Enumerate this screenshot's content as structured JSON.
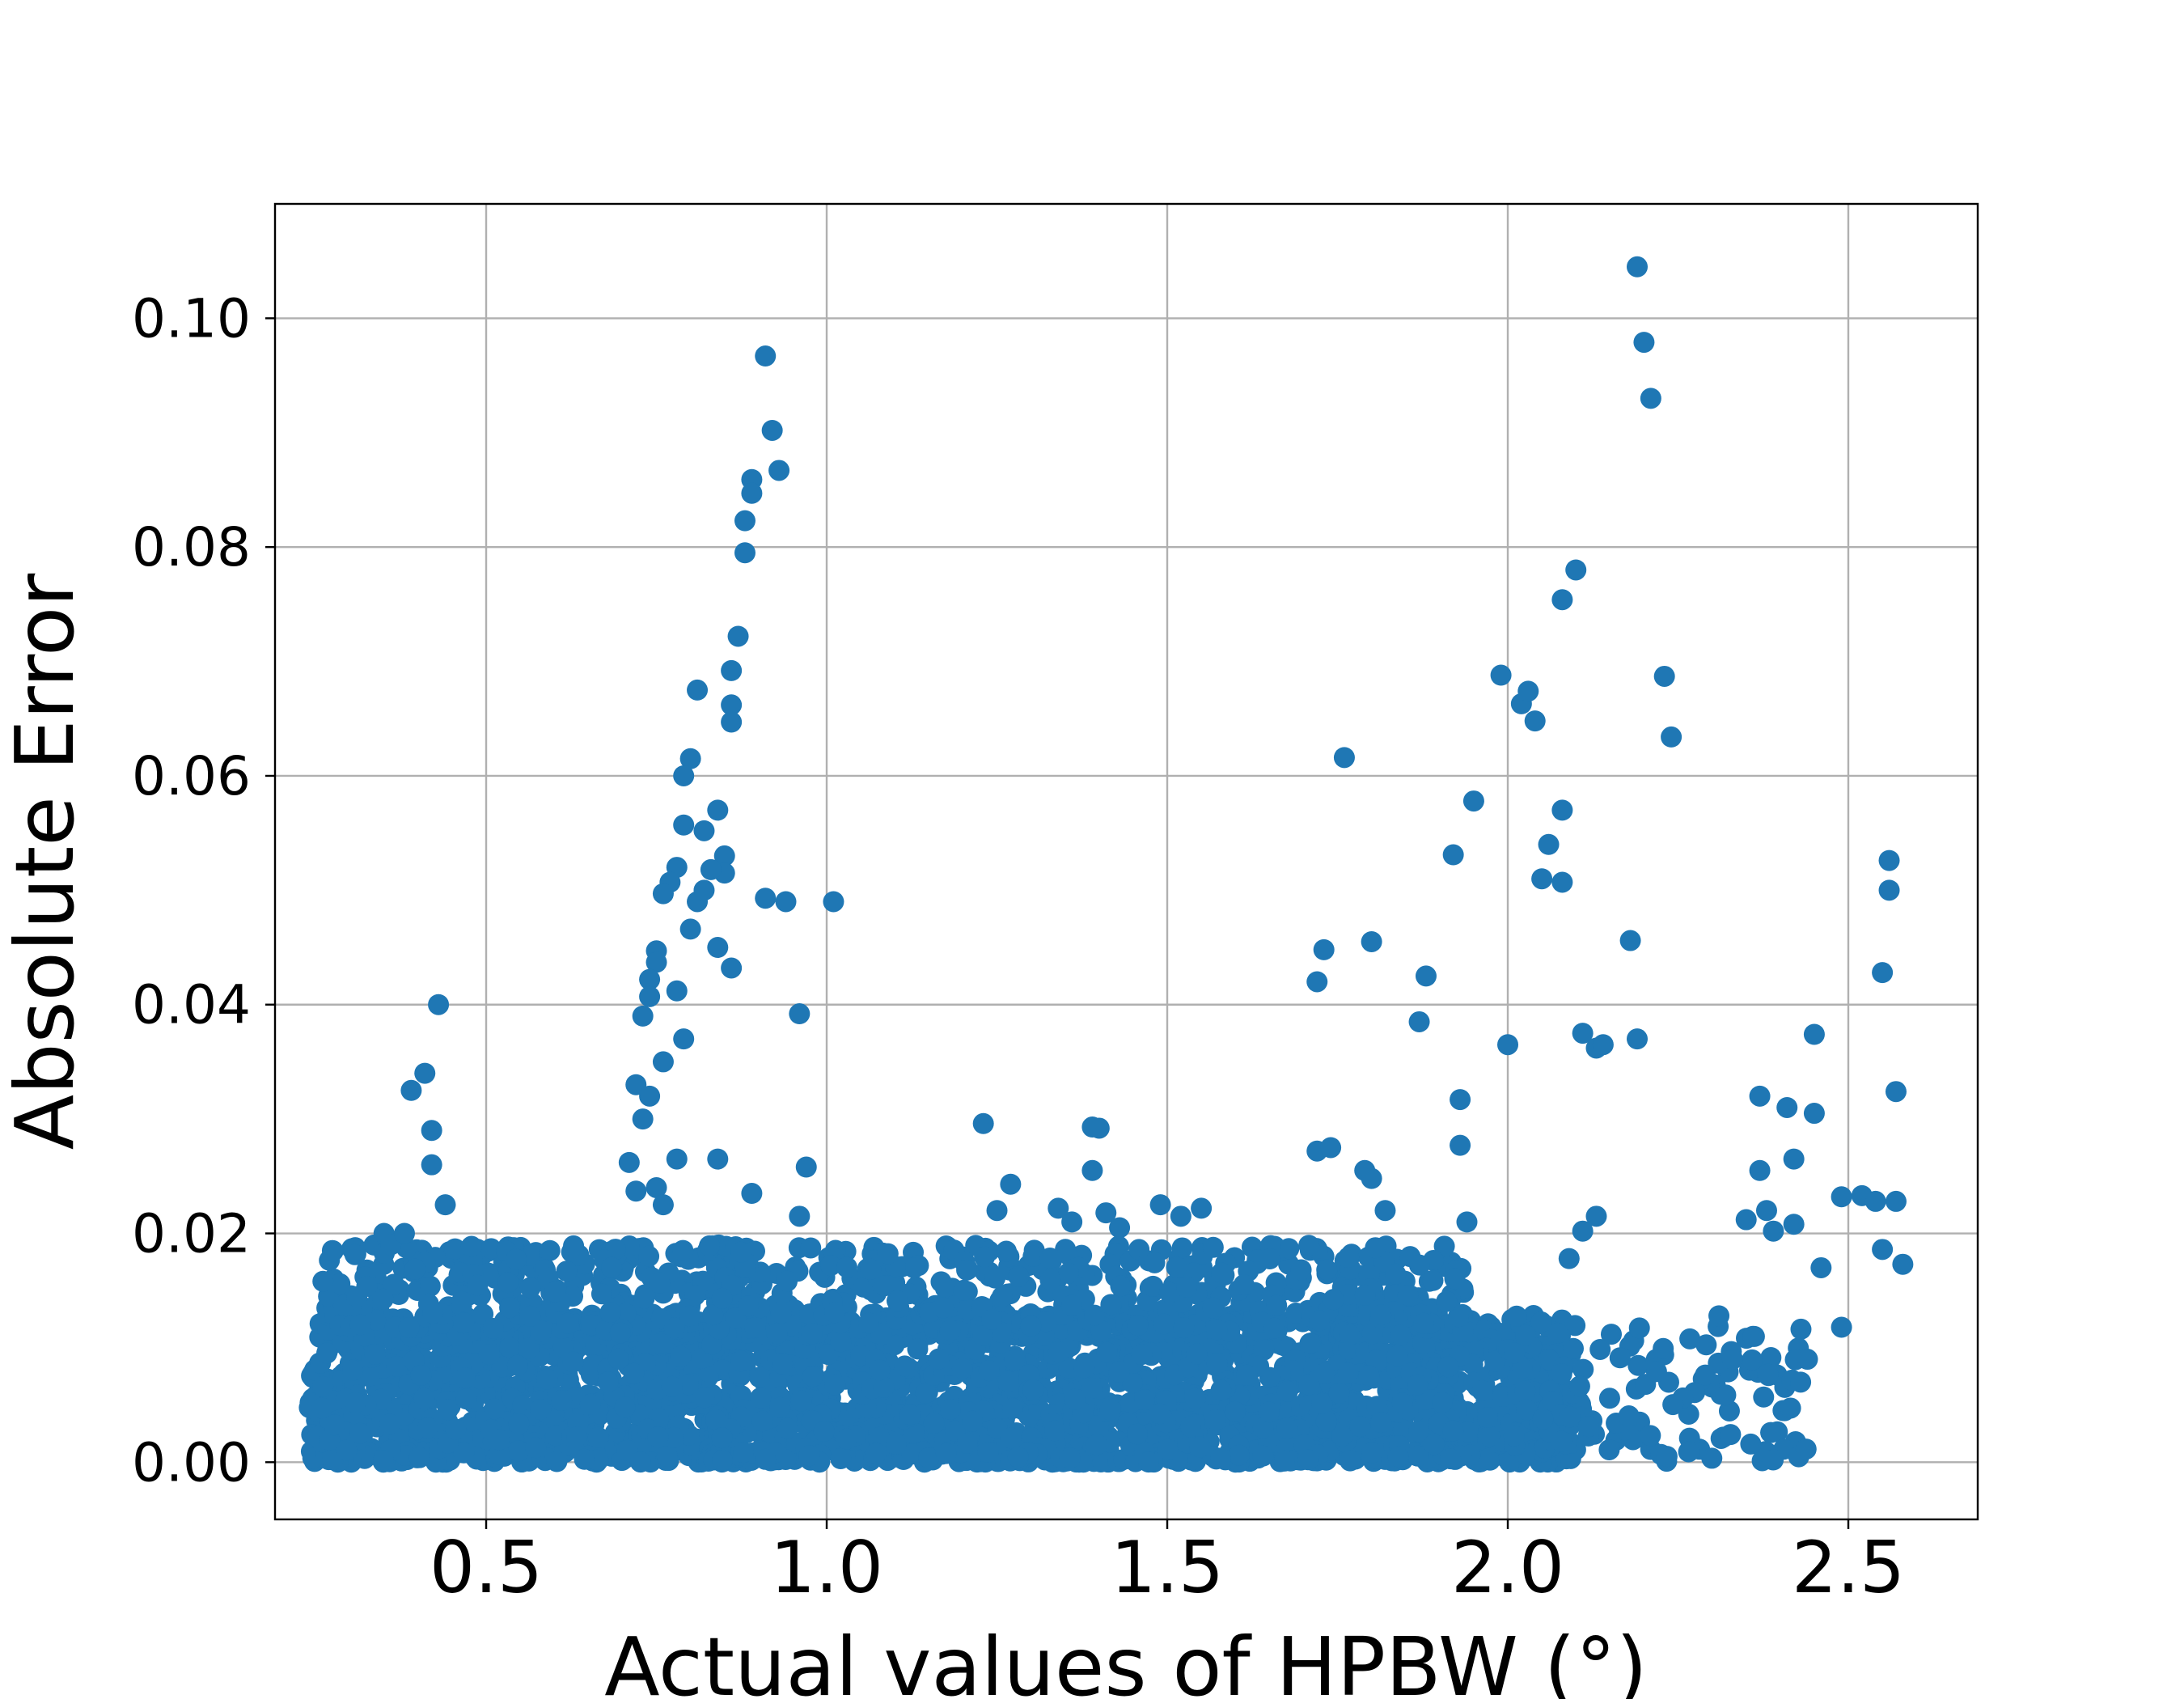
{
  "chart_data": {
    "type": "scatter",
    "title": "",
    "xlabel": "Actual values of HPBW (°)",
    "ylabel": "Absolute Error",
    "xlim": [
      0.19,
      2.69
    ],
    "ylim": [
      -0.005,
      0.11
    ],
    "x_ticks": [
      "0.5",
      "1.0",
      "1.5",
      "2.0",
      "2.5"
    ],
    "y_ticks": [
      "0.00",
      "0.02",
      "0.04",
      "0.06",
      "0.08",
      "0.10"
    ],
    "grid": true,
    "marker_color": "#1f77b4",
    "dense_band": {
      "x_range": [
        0.24,
        2.1
      ],
      "y_range": [
        0.0,
        0.013
      ]
    },
    "points": {
      "x": [
        0.43,
        0.41,
        0.42,
        0.42,
        0.44,
        0.39,
        0.35,
        0.36,
        0.38,
        0.91,
        0.92,
        0.93,
        0.89,
        0.89,
        0.88,
        0.88,
        0.87,
        0.86,
        0.86,
        0.86,
        0.85,
        0.85,
        0.84,
        0.83,
        0.82,
        0.81,
        0.8,
        0.79,
        0.79,
        0.78,
        0.77,
        0.76,
        0.75,
        0.75,
        0.74,
        0.74,
        0.73,
        0.72,
        0.8,
        0.81,
        0.82,
        0.84,
        0.86,
        0.78,
        0.79,
        0.76,
        0.74,
        0.73,
        0.78,
        0.84,
        0.94,
        0.91,
        0.96,
        0.97,
        1.01,
        0.96,
        0.89,
        0.71,
        0.72,
        0.75,
        0.76,
        1.23,
        1.27,
        1.39,
        1.4,
        1.39,
        1.34,
        1.36,
        1.41,
        1.43,
        1.49,
        1.52,
        1.55,
        1.25,
        1.73,
        1.72,
        1.76,
        1.72,
        1.74,
        1.79,
        1.8,
        1.8,
        1.82,
        1.88,
        1.87,
        1.92,
        1.95,
        1.93,
        1.94,
        1.93,
        1.99,
        2.02,
        2.03,
        2.04,
        2.06,
        2.05,
        2.08,
        2.08,
        2.08,
        2.1,
        2.11,
        2.13,
        2.14,
        2.13,
        2.11,
        2.09,
        2.19,
        2.2,
        2.21,
        2.23,
        2.24,
        2.18,
        2.19,
        2.0,
        2.37,
        2.41,
        2.45,
        2.45,
        2.42,
        2.42,
        2.37,
        2.38,
        2.35,
        2.39,
        2.46,
        2.44,
        2.49,
        2.49,
        2.52,
        2.54,
        2.56,
        2.55,
        2.56,
        2.57,
        2.57,
        2.58,
        2.55,
        2.43,
        2.31,
        2.33,
        2.36
      ],
      "y": [
        0.04,
        0.034,
        0.029,
        0.026,
        0.0225,
        0.0325,
        0.02,
        0.019,
        0.02,
        0.0967,
        0.0902,
        0.0867,
        0.0859,
        0.0847,
        0.0823,
        0.0795,
        0.0722,
        0.0692,
        0.0662,
        0.0647,
        0.053,
        0.0515,
        0.057,
        0.0518,
        0.0552,
        0.0675,
        0.0615,
        0.06,
        0.0557,
        0.052,
        0.0507,
        0.0497,
        0.0447,
        0.0437,
        0.0422,
        0.0407,
        0.039,
        0.033,
        0.0466,
        0.049,
        0.05,
        0.045,
        0.0432,
        0.0412,
        0.037,
        0.035,
        0.032,
        0.03,
        0.0265,
        0.0265,
        0.049,
        0.0493,
        0.0392,
        0.0258,
        0.049,
        0.0215,
        0.0235,
        0.0262,
        0.0237,
        0.024,
        0.0225,
        0.0296,
        0.0243,
        0.0293,
        0.0292,
        0.0255,
        0.0222,
        0.021,
        0.0218,
        0.0205,
        0.0225,
        0.0215,
        0.0222,
        0.022,
        0.0448,
        0.042,
        0.0616,
        0.0272,
        0.0275,
        0.0255,
        0.0248,
        0.0455,
        0.022,
        0.0425,
        0.0385,
        0.0531,
        0.0578,
        0.0317,
        0.021,
        0.0277,
        0.0688,
        0.0663,
        0.0674,
        0.0648,
        0.054,
        0.051,
        0.0754,
        0.0507,
        0.057,
        0.078,
        0.0375,
        0.0362,
        0.0365,
        0.0215,
        0.0202,
        0.0178,
        0.1045,
        0.0979,
        0.093,
        0.0687,
        0.0634,
        0.0456,
        0.037,
        0.0365,
        0.032,
        0.031,
        0.0305,
        0.0374,
        0.0265,
        0.0208,
        0.0255,
        0.022,
        0.0212,
        0.0202,
        0.017,
        0.009,
        0.0232,
        0.0118,
        0.0233,
        0.0228,
        0.0526,
        0.0428,
        0.05,
        0.0324,
        0.0228,
        0.0173,
        0.0186,
        0.007,
        0.0128,
        0.009,
        0.011
      ]
    }
  }
}
